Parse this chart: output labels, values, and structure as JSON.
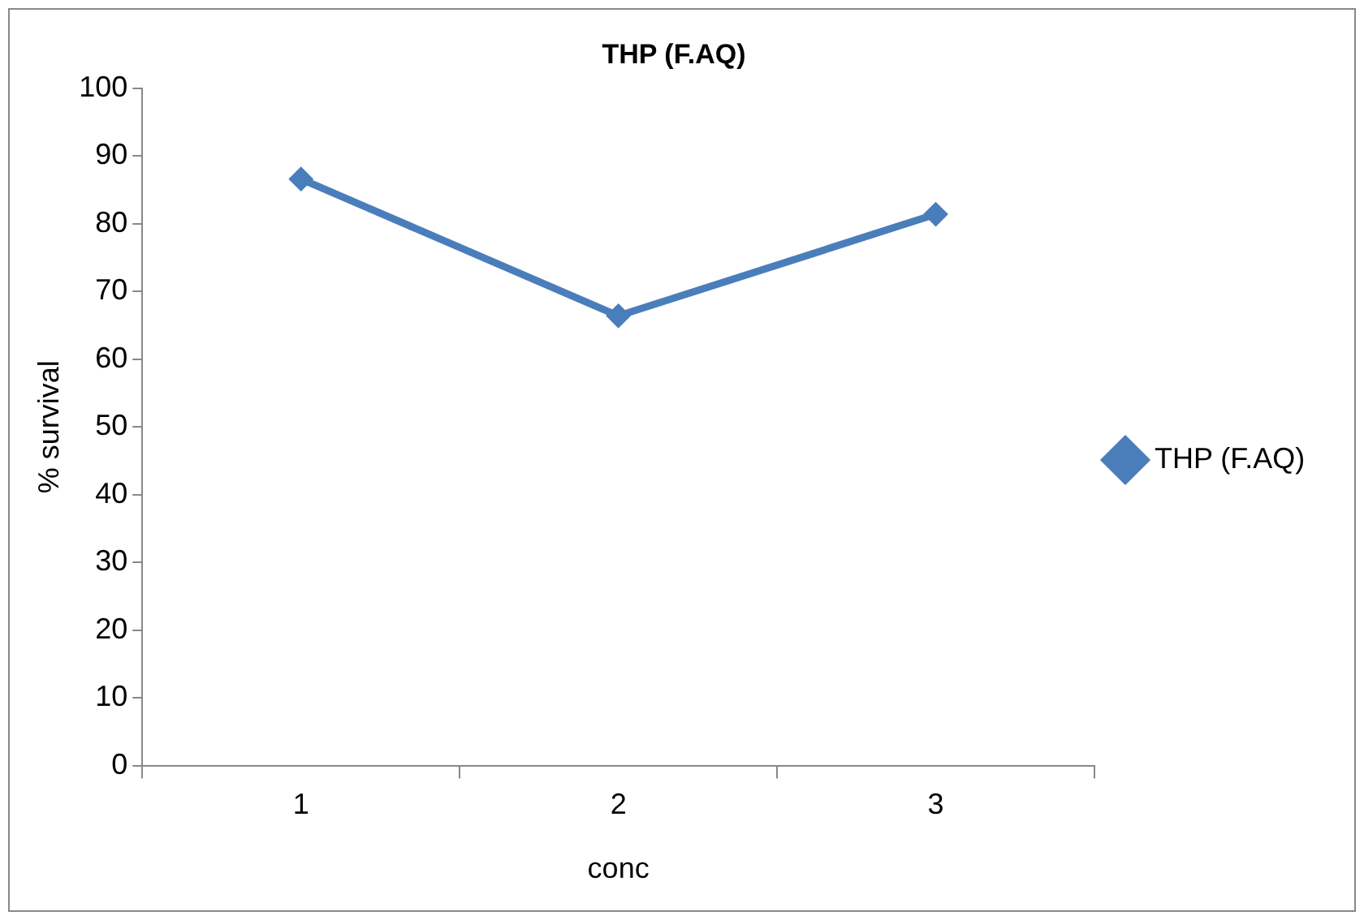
{
  "chart_data": {
    "type": "line",
    "title": "THP (F.AQ)",
    "xlabel": "conc",
    "ylabel": "% survival",
    "categories": [
      "1",
      "2",
      "3"
    ],
    "series": [
      {
        "name": "THP (F.AQ)",
        "color": "#4a7ebb",
        "values": [
          86.6,
          66.4,
          81.4
        ]
      }
    ],
    "ylim": [
      0,
      100
    ],
    "yticks": [
      0,
      10,
      20,
      30,
      40,
      50,
      60,
      70,
      80,
      90,
      100
    ],
    "grid": false,
    "legend": "right",
    "marker": "diamond",
    "line_style": "solid"
  }
}
